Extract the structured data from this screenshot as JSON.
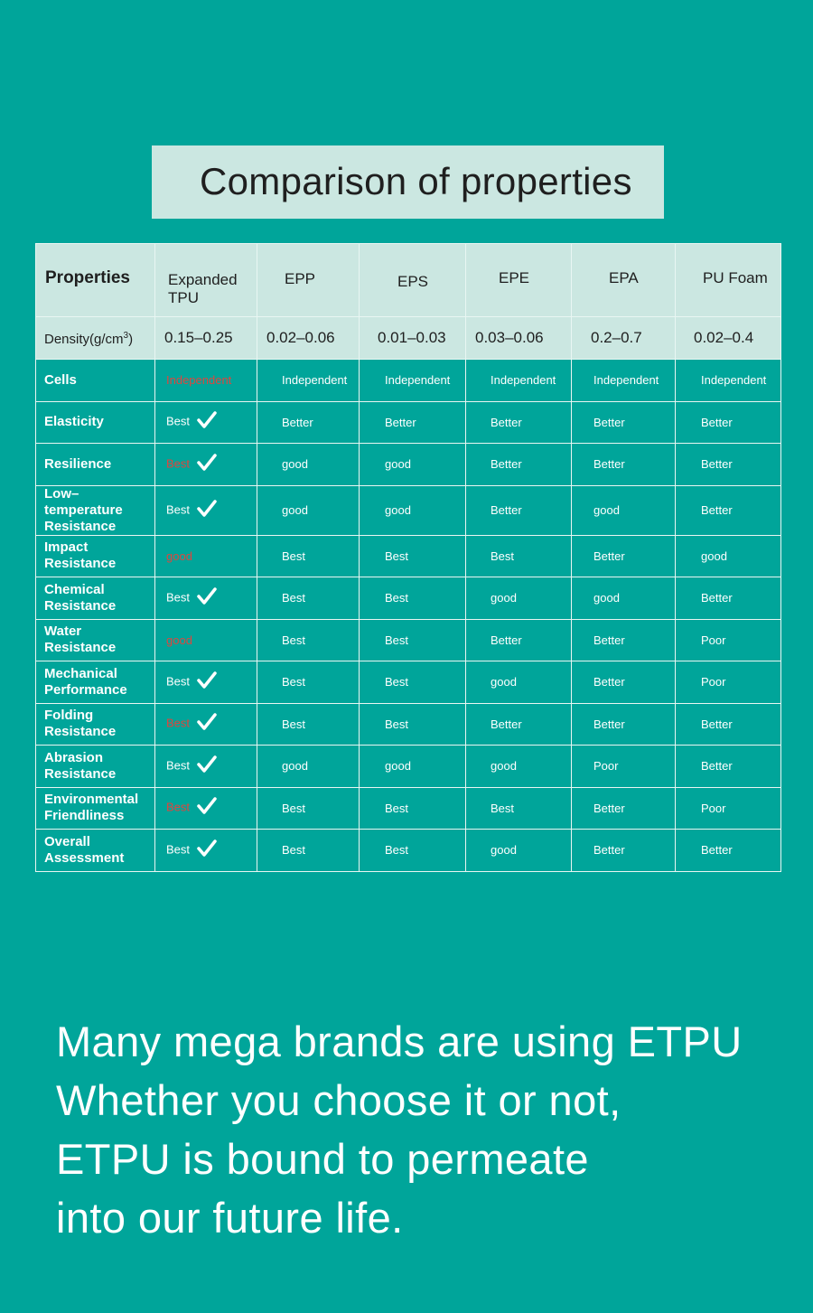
{
  "title": "Comparison of properties",
  "table": {
    "header": {
      "properties": "Properties",
      "columns": [
        "Expanded TPU",
        "EPP",
        "EPS",
        "EPE",
        "EPA",
        "PU Foam"
      ]
    },
    "density": {
      "label": "Density(g/cm",
      "sup": "3",
      "label_end": ")",
      "values": [
        "0.15–0.25",
        "0.02–0.06",
        "0.01–0.03",
        "0.03–0.06",
        "0.2–0.7",
        "0.02–0.4"
      ]
    },
    "rows": [
      {
        "label": "Cells",
        "values": [
          "Independent",
          "Independent",
          "Independent",
          "Independent",
          "Independent",
          "Independent"
        ]
      },
      {
        "label": "Elasticity",
        "values": [
          "Best",
          "Better",
          "Better",
          "Better",
          "Better",
          "Better"
        ]
      },
      {
        "label": "Resilience",
        "values": [
          "Best",
          "good",
          "good",
          "Better",
          "Better",
          "Better"
        ]
      },
      {
        "label": "Low–temperature Resistance",
        "values": [
          "Best",
          "good",
          "good",
          "Better",
          "good",
          "Better"
        ]
      },
      {
        "label": "Impact Resistance",
        "values": [
          "good",
          "Best",
          "Best",
          "Best",
          "Better",
          "good"
        ]
      },
      {
        "label": "Chemical Resistance",
        "values": [
          "Best",
          "Best",
          "Best",
          "good",
          "good",
          "Better"
        ]
      },
      {
        "label": "Water Resistance",
        "values": [
          "good",
          "Best",
          "Best",
          "Better",
          "Better",
          "Poor"
        ]
      },
      {
        "label": "Mechanical Performance",
        "values": [
          "Best",
          "Best",
          "Best",
          "good",
          "Better",
          "Poor"
        ]
      },
      {
        "label": "Folding Resistance",
        "values": [
          "Best",
          "Best",
          "Best",
          "Better",
          "Better",
          "Better"
        ]
      },
      {
        "label": "Abrasion Resistance",
        "values": [
          "Best",
          "good",
          "good",
          "good",
          "Poor",
          "Better"
        ]
      },
      {
        "label": "Environmental Friendliness",
        "values": [
          "Best",
          "Best",
          "Best",
          "Best",
          "Better",
          "Poor"
        ]
      },
      {
        "label": "Overall Assessment",
        "values": [
          "Best",
          "Best",
          "Best",
          "good",
          "Better",
          "Better"
        ]
      }
    ]
  },
  "tagline": [
    "Many mega brands are using ETPU",
    "Whether you choose it or not,",
    "ETPU is bound to permeate",
    "into our future life."
  ],
  "colors": {
    "background": "#00a59a",
    "header_fill": "#cbe7e1",
    "highlight_red": "#e0453d"
  }
}
